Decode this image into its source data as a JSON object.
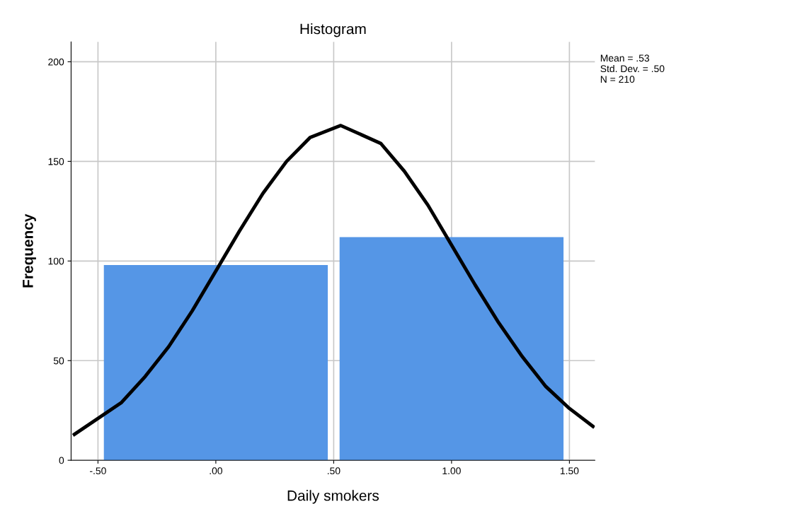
{
  "chart_data": {
    "type": "histogram",
    "title": "Histogram",
    "xlabel": "Daily smokers",
    "ylabel": "Frequency",
    "bins": [
      -0.475,
      0.475,
      0.525,
      1.475
    ],
    "series": [
      {
        "color": "#5596e6",
        "values": [
          98,
          null,
          112
        ]
      },
      {
        "type": "line",
        "color": "#000000",
        "x": [
          -0.6,
          -0.4,
          -0.3,
          -0.2,
          -0.1,
          0,
          0.1,
          0.2,
          0.3,
          0.4,
          0.53,
          0.7,
          0.8,
          0.9,
          1.0,
          1.1,
          1.2,
          1.3,
          1.4,
          1.5,
          1.6
        ],
        "values": [
          13,
          29,
          42,
          57,
          75,
          95,
          115,
          134,
          150,
          162,
          168,
          159,
          145,
          128,
          108,
          88,
          69,
          52,
          37,
          26,
          17
        ]
      }
    ],
    "xlim": [
      -0.614,
      1.608
    ],
    "ylim": [
      0,
      210
    ],
    "xticks": [
      {
        "value": -0.5,
        "label": "-.50"
      },
      {
        "value": 0,
        "label": ".00"
      },
      {
        "value": 0.5,
        "label": ".50"
      },
      {
        "value": 1.0,
        "label": "1.00"
      },
      {
        "value": 1.5,
        "label": "1.50"
      }
    ],
    "yticks": [
      0,
      50,
      100,
      150,
      200
    ],
    "grid": true,
    "line_style": "solid",
    "marker": "none",
    "annotations": [
      "Mean = .53\nStd. Dev. = .50\nN = 210"
    ]
  }
}
